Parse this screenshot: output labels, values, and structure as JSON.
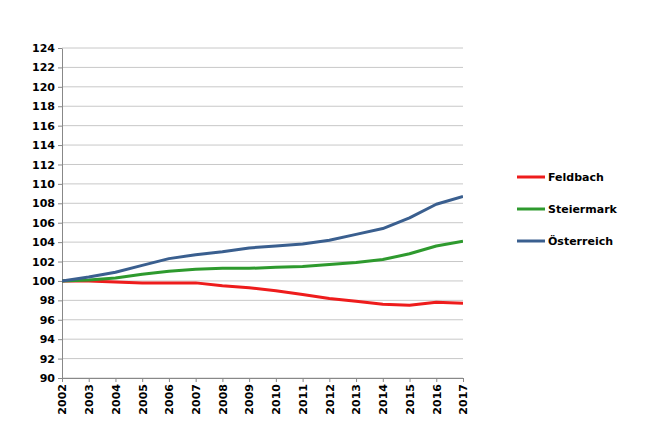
{
  "chart_data": {
    "type": "line",
    "x": [
      2002,
      2003,
      2004,
      2005,
      2006,
      2007,
      2008,
      2009,
      2010,
      2011,
      2012,
      2013,
      2014,
      2015,
      2016,
      2017
    ],
    "series": [
      {
        "name": "Feldbach",
        "color": "#ee1c1c",
        "values": [
          100,
          100.0,
          99.9,
          99.8,
          99.8,
          99.8,
          99.5,
          99.3,
          99.0,
          98.6,
          98.2,
          97.9,
          97.6,
          97.5,
          97.8,
          97.7
        ]
      },
      {
        "name": "Steiermark",
        "color": "#2e9a2e",
        "values": [
          100,
          100.1,
          100.3,
          100.7,
          101.0,
          101.2,
          101.3,
          101.3,
          101.4,
          101.5,
          101.7,
          101.9,
          102.2,
          102.8,
          103.6,
          104.1
        ]
      },
      {
        "name": "Österreich",
        "color": "#3a5f8f",
        "values": [
          100,
          100.4,
          100.9,
          101.6,
          102.3,
          102.7,
          103.0,
          103.4,
          103.6,
          103.8,
          104.2,
          104.8,
          105.4,
          106.5,
          107.9,
          108.7
        ]
      }
    ],
    "xlim": [
      2002,
      2017
    ],
    "xticks": [
      2002,
      2003,
      2004,
      2005,
      2006,
      2007,
      2008,
      2009,
      2010,
      2011,
      2012,
      2013,
      2014,
      2015,
      2016,
      2017
    ],
    "ylim": [
      90,
      124
    ],
    "yticks": [
      90,
      92,
      94,
      96,
      98,
      100,
      102,
      104,
      106,
      108,
      110,
      112,
      114,
      116,
      118,
      120,
      122,
      124
    ],
    "grid": true,
    "legend": "right"
  }
}
